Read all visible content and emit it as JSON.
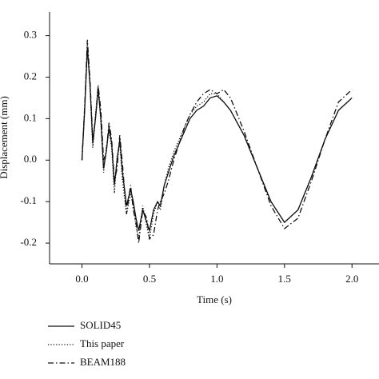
{
  "chart_data": {
    "type": "line",
    "x_label": "Time (s)",
    "y_label": "Displacement (mm)",
    "x": [
      0,
      0.02,
      0.04,
      0.06,
      0.08,
      0.1,
      0.12,
      0.14,
      0.16,
      0.18,
      0.2,
      0.22,
      0.24,
      0.26,
      0.28,
      0.3,
      0.33,
      0.36,
      0.38,
      0.4,
      0.42,
      0.45,
      0.48,
      0.5,
      0.53,
      0.56,
      0.58,
      0.61,
      0.64,
      0.68,
      0.72,
      0.76,
      0.8,
      0.85,
      0.9,
      0.95,
      1.0,
      1.05,
      1.1,
      1.2,
      1.3,
      1.4,
      1.5,
      1.6,
      1.7,
      1.8,
      1.9,
      2.0
    ],
    "series": [
      {
        "name": "SOLID45",
        "color": "#111111",
        "dash": "solid",
        "values": [
          0,
          0.12,
          0.27,
          0.18,
          0.04,
          0.1,
          0.17,
          0.1,
          -0.02,
          0.02,
          0.08,
          0.04,
          -0.06,
          0.0,
          0.05,
          -0.03,
          -0.11,
          -0.07,
          -0.1,
          -0.14,
          -0.17,
          -0.12,
          -0.15,
          -0.17,
          -0.12,
          -0.1,
          -0.11,
          -0.06,
          -0.03,
          0.01,
          0.04,
          0.07,
          0.1,
          0.12,
          0.13,
          0.15,
          0.155,
          0.14,
          0.12,
          0.06,
          -0.02,
          -0.1,
          -0.15,
          -0.12,
          -0.04,
          0.05,
          0.12,
          0.15
        ]
      },
      {
        "name": "This paper",
        "color": "#111111",
        "dash": "dotted",
        "values": [
          0,
          0.13,
          0.28,
          0.17,
          0.03,
          0.11,
          0.18,
          0.09,
          -0.03,
          0.03,
          0.07,
          0.03,
          -0.08,
          0.01,
          0.04,
          -0.05,
          -0.13,
          -0.08,
          -0.11,
          -0.16,
          -0.19,
          -0.11,
          -0.16,
          -0.19,
          -0.13,
          -0.1,
          -0.12,
          -0.06,
          -0.02,
          0.02,
          0.05,
          0.08,
          0.11,
          0.13,
          0.14,
          0.16,
          0.16,
          0.14,
          0.12,
          0.06,
          -0.02,
          -0.1,
          -0.15,
          -0.12,
          -0.04,
          0.05,
          0.12,
          0.15
        ]
      },
      {
        "name": "BEAM188",
        "color": "#111111",
        "dash": "dashdot",
        "values": [
          0,
          0.13,
          0.29,
          0.19,
          0.05,
          0.1,
          0.18,
          0.12,
          0.0,
          0.02,
          0.09,
          0.05,
          -0.05,
          -0.02,
          0.06,
          -0.01,
          -0.13,
          -0.06,
          -0.12,
          -0.15,
          -0.2,
          -0.12,
          -0.14,
          -0.19,
          -0.18,
          -0.12,
          -0.1,
          -0.08,
          -0.05,
          0.0,
          0.04,
          0.08,
          0.11,
          0.14,
          0.16,
          0.17,
          0.16,
          0.17,
          0.15,
          0.07,
          -0.02,
          -0.11,
          -0.165,
          -0.14,
          -0.05,
          0.05,
          0.14,
          0.17
        ]
      }
    ],
    "xlim": [
      -0.24,
      2.2
    ],
    "ylim": [
      -0.25,
      0.357
    ],
    "xticks": [
      {
        "value": 0,
        "label": "0.0"
      },
      0.5,
      {
        "value": 1,
        "label": "1.0"
      },
      1.5,
      {
        "value": 2,
        "label": "2.0"
      }
    ],
    "yticks": [
      -0.2,
      -0.1,
      {
        "value": 0,
        "label": "0.0"
      },
      0.1,
      0.2,
      0.3
    ],
    "legend": "bottom-left"
  }
}
